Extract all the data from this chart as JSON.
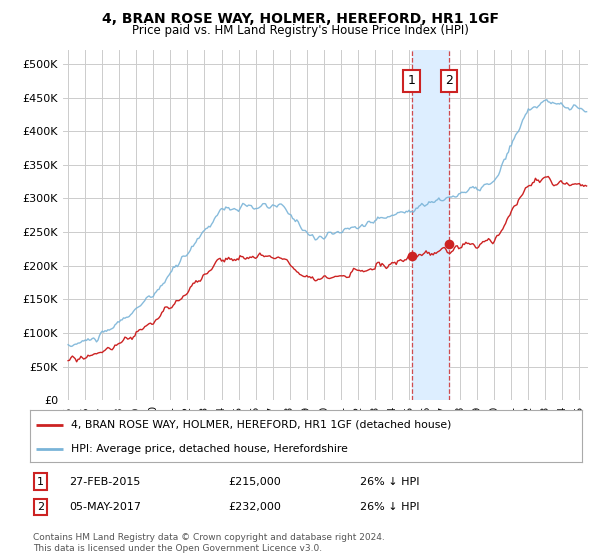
{
  "title": "4, BRAN ROSE WAY, HOLMER, HEREFORD, HR1 1GF",
  "subtitle": "Price paid vs. HM Land Registry's House Price Index (HPI)",
  "ylim": [
    0,
    520000
  ],
  "yticks": [
    0,
    50000,
    100000,
    150000,
    200000,
    250000,
    300000,
    350000,
    400000,
    450000,
    500000
  ],
  "xlim_start": 1994.7,
  "xlim_end": 2025.5,
  "transaction1": {
    "date_num": 2015.15,
    "price": 215000,
    "label": "1",
    "date_str": "27-FEB-2015",
    "pct": "26% ↓ HPI"
  },
  "transaction2": {
    "date_num": 2017.35,
    "price": 232000,
    "label": "2",
    "date_str": "05-MAY-2017",
    "pct": "26% ↓ HPI"
  },
  "hpi_color": "#7ab4d8",
  "price_color": "#cc2222",
  "legend_label_price": "4, BRAN ROSE WAY, HOLMER, HEREFORD, HR1 1GF (detached house)",
  "legend_label_hpi": "HPI: Average price, detached house, Herefordshire",
  "footer": "Contains HM Land Registry data © Crown copyright and database right 2024.\nThis data is licensed under the Open Government Licence v3.0.",
  "background_color": "#ffffff",
  "grid_color": "#cccccc",
  "span_color": "#ddeeff"
}
